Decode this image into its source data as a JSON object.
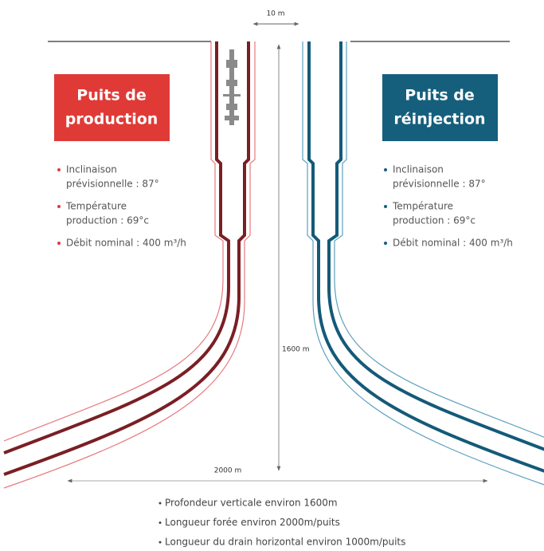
{
  "production_well": {
    "title_lines": [
      "Puits de",
      "production"
    ],
    "bullets": [
      [
        "Inclinaison",
        "prévisionnelle : 87°"
      ],
      [
        "Température",
        "production : 69°c"
      ],
      [
        "Débit nominal : 400 m³/h"
      ]
    ]
  },
  "reinjection_well": {
    "title_lines": [
      "Puits de",
      "réinjection"
    ],
    "bullets": [
      [
        "Inclinaison",
        "prévisionnelle : 87°"
      ],
      [
        "Température",
        "production : 69°c"
      ],
      [
        "Débit nominal : 400 m³/h"
      ]
    ]
  },
  "dimensions": {
    "top_width": "10 m",
    "depth": "1600 m",
    "horizontal": "2000 m"
  },
  "notes": [
    "Profondeur verticale environ 1600m",
    "Longueur forée environ 2000m/puits",
    "Longueur du drain horizontal environ 1000m/puits"
  ]
}
